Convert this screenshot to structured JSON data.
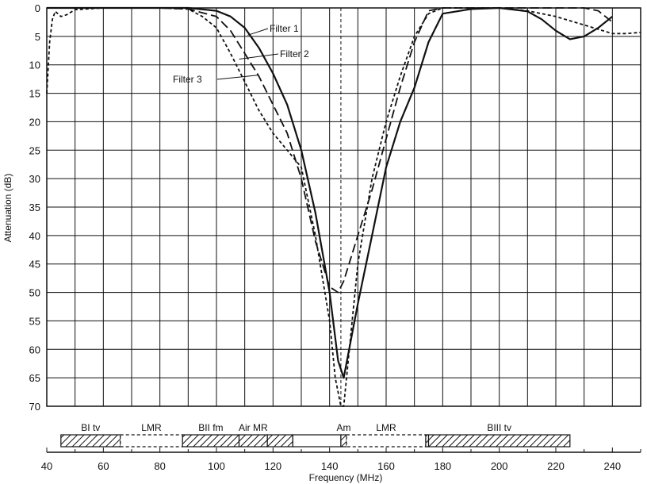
{
  "chart_data": {
    "type": "line",
    "title": "",
    "xlabel": "Frequency (MHz)",
    "ylabel": "Attenuation (dB)",
    "xlim": [
      40,
      250
    ],
    "ylim": [
      0,
      70
    ],
    "y_inverted": true,
    "grid": true,
    "x_ticks": [
      40,
      60,
      80,
      100,
      120,
      140,
      160,
      180,
      200,
      220,
      240
    ],
    "y_ticks": [
      0,
      5,
      10,
      15,
      20,
      25,
      30,
      35,
      40,
      45,
      50,
      55,
      60,
      65,
      70
    ],
    "series": [
      {
        "name": "Filter 1",
        "style": "solid",
        "x": [
          40,
          60,
          80,
          90,
          100,
          105,
          110,
          115,
          120,
          125,
          130,
          135,
          140,
          143,
          145,
          150,
          155,
          160,
          165,
          170,
          175,
          180,
          190,
          200,
          210,
          215,
          220,
          225,
          230,
          235,
          240
        ],
        "y": [
          0,
          0,
          0,
          0,
          0.5,
          1.5,
          3.5,
          7,
          11.5,
          17,
          25,
          36,
          50,
          62,
          65,
          52,
          40,
          28,
          20,
          14,
          6,
          1,
          0.2,
          0,
          0.6,
          2,
          4,
          5.5,
          5,
          3.5,
          1.5
        ]
      },
      {
        "name": "Filter 2",
        "style": "long-dash",
        "x": [
          40,
          60,
          80,
          90,
          100,
          105,
          110,
          115,
          120,
          125,
          130,
          135,
          140,
          143,
          145,
          150,
          155,
          160,
          165,
          170,
          175,
          180,
          200,
          220,
          230,
          235,
          240
        ],
        "y": [
          0,
          0,
          0,
          0.2,
          1.5,
          4,
          8,
          12,
          17,
          22,
          30,
          41,
          49,
          50,
          48,
          40,
          32,
          23,
          14,
          6,
          0.5,
          0,
          0,
          0,
          0,
          0.5,
          2.5
        ]
      },
      {
        "name": "Filter 3",
        "style": "short-dash",
        "x": [
          40,
          41,
          42,
          43,
          45,
          47,
          50,
          60,
          80,
          90,
          95,
          100,
          105,
          110,
          115,
          120,
          125,
          130,
          135,
          140,
          142,
          144,
          145,
          147,
          150,
          155,
          160,
          165,
          170,
          175,
          180,
          200,
          210,
          220,
          230,
          240,
          245,
          250
        ],
        "y": [
          15,
          6,
          2,
          0.6,
          1.5,
          1.2,
          0.3,
          0,
          0,
          0.2,
          1.5,
          3.5,
          8,
          13,
          18,
          22,
          25,
          28,
          40,
          55,
          65,
          70,
          70,
          60,
          45,
          30,
          20,
          12,
          5,
          1,
          0,
          0,
          0.5,
          1.5,
          3,
          4.5,
          4.5,
          4.3
        ]
      }
    ],
    "annotations": [
      "Filter 1",
      "Filter 2",
      "Filter 3"
    ],
    "bands": [
      {
        "label": "BI tv",
        "start": 45,
        "end": 66,
        "fill": "hatched"
      },
      {
        "label": "LMR",
        "start": 66,
        "end": 88,
        "fill": "dashed"
      },
      {
        "label": "BII fm",
        "start": 88,
        "end": 108,
        "fill": "hatched"
      },
      {
        "label": "Air MR",
        "start": 108,
        "end": 118,
        "fill": "hatched"
      },
      {
        "label": "",
        "start": 118,
        "end": 127,
        "fill": "hatched"
      },
      {
        "label": "",
        "start": 127,
        "end": 144,
        "fill": "empty"
      },
      {
        "label": "Am",
        "start": 144,
        "end": 146,
        "fill": "hatched"
      },
      {
        "label": "LMR",
        "start": 146,
        "end": 174,
        "fill": "dashed"
      },
      {
        "label": "",
        "start": 174,
        "end": 175,
        "fill": "hatched"
      },
      {
        "label": "BIII tv",
        "start": 175,
        "end": 225,
        "fill": "hatched"
      }
    ]
  },
  "colors": {
    "ink": "#111111",
    "background": "#ffffff"
  }
}
